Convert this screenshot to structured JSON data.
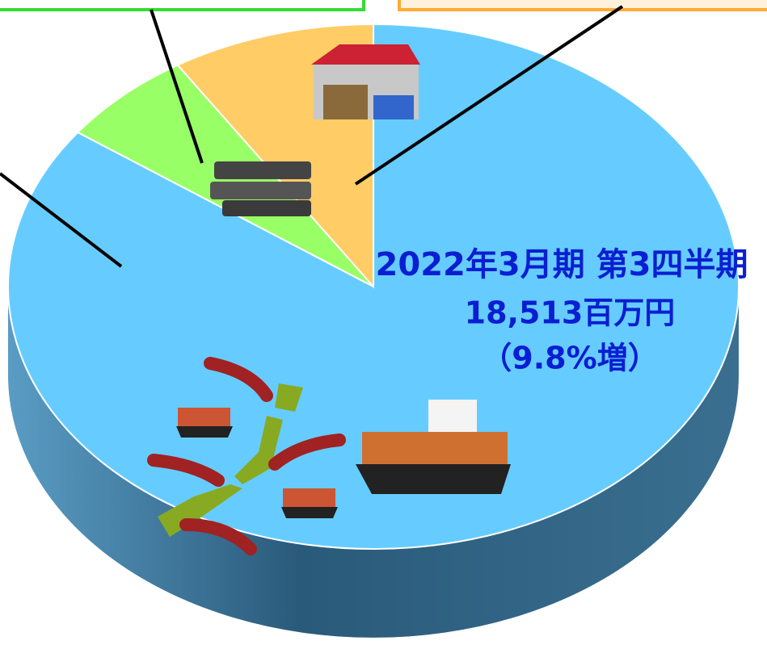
{
  "chart_data": {
    "type": "pie3d",
    "values": [
      85,
      6,
      9
    ],
    "colors": [
      "#66ccff",
      "#99ff66",
      "#ffcc66"
    ],
    "side_color": "#2e5c7a",
    "annotations": [
      "2022年3月期 第3四半期",
      "18,513百万円",
      "（9.8%増）"
    ],
    "annotation_color": "#0a1ed2"
  }
}
